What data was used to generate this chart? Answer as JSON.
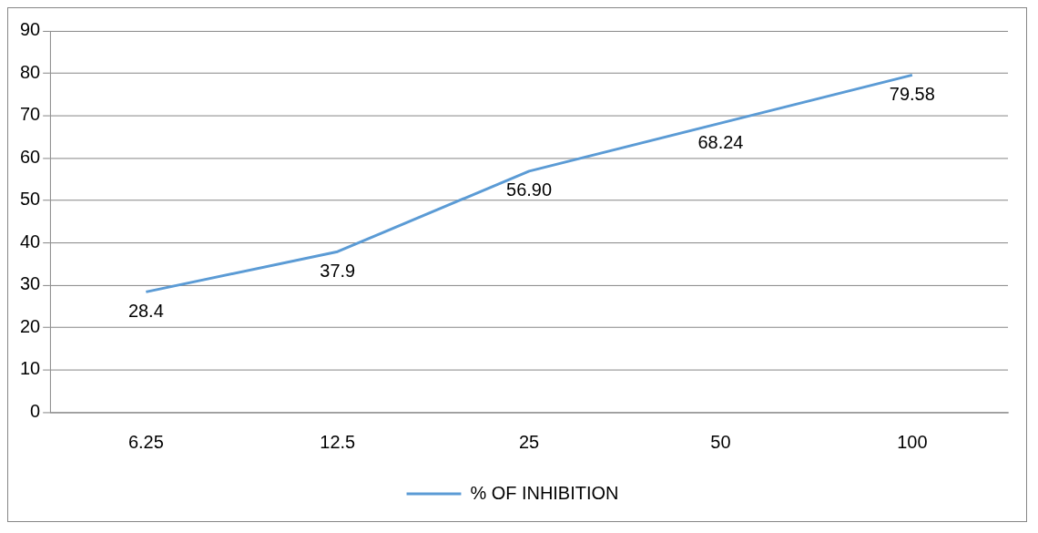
{
  "chart_data": {
    "type": "line",
    "categories": [
      "6.25",
      "12.5",
      "25",
      "50",
      "100"
    ],
    "series": [
      {
        "name": "% OF INHIBITION",
        "color": "#5b9bd5",
        "values": [
          28.4,
          37.9,
          56.9,
          68.24,
          79.58
        ],
        "value_labels": [
          "28.4",
          "37.9",
          "56.90",
          "68.24",
          "79.58"
        ]
      }
    ],
    "ylim": [
      0,
      90
    ],
    "yticks": [
      0,
      10,
      20,
      30,
      40,
      50,
      60,
      70,
      80,
      90
    ],
    "grid": "y",
    "legend": "bottom",
    "marker": "none"
  }
}
